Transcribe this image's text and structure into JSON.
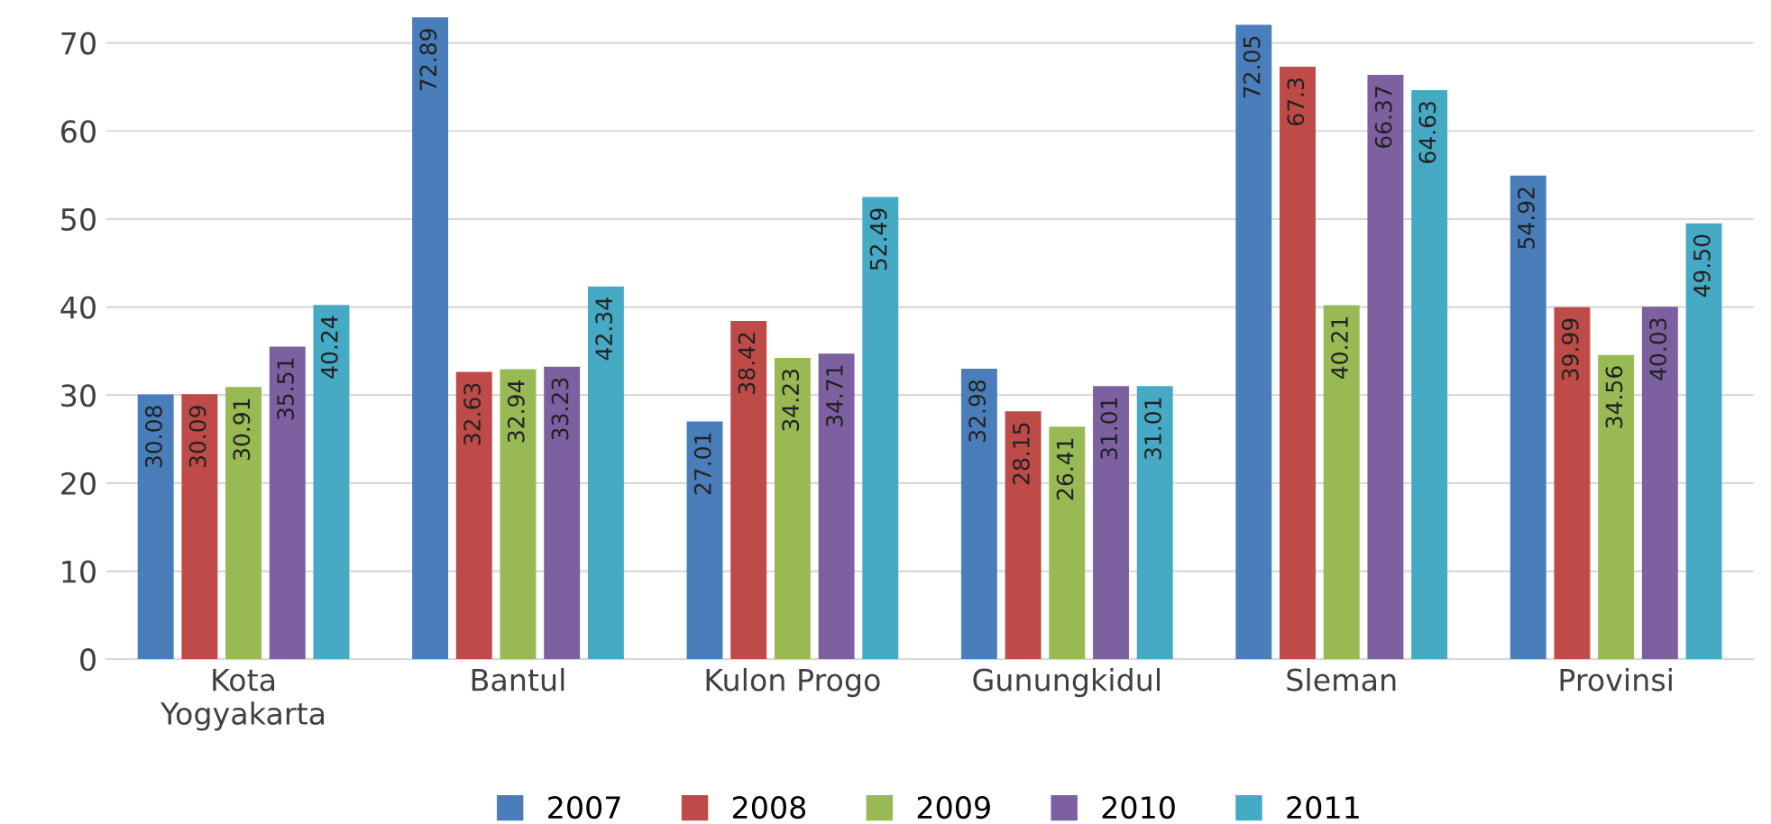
{
  "chart_data": {
    "type": "bar",
    "categories": [
      "Kota\nYogyakarta",
      "Bantul",
      "Kulon Progo",
      "Gunungkidul",
      "Sleman",
      "Provinsi"
    ],
    "series": [
      {
        "name": "2007",
        "color": "#4a7ebb",
        "values": [
          30.08,
          72.89,
          27.01,
          32.98,
          72.05,
          54.92
        ],
        "value_labels": [
          "30.08",
          "72.89",
          "27.01",
          "32.98",
          "72.05",
          "54.92"
        ]
      },
      {
        "name": "2008",
        "color": "#be4b48",
        "values": [
          30.09,
          32.63,
          38.42,
          28.15,
          67.3,
          39.99
        ],
        "value_labels": [
          "30.09",
          "32.63",
          "38.42",
          "28.15",
          "67.3",
          "39.99"
        ]
      },
      {
        "name": "2009",
        "color": "#98b954",
        "values": [
          30.91,
          32.94,
          34.23,
          26.41,
          40.21,
          34.56
        ],
        "value_labels": [
          "30.91",
          "32.94",
          "34.23",
          "26.41",
          "40.21",
          "34.56"
        ]
      },
      {
        "name": "2010",
        "color": "#7d60a0",
        "values": [
          35.51,
          33.23,
          34.71,
          31.01,
          66.37,
          40.03
        ],
        "value_labels": [
          "35.51",
          "33.23",
          "34.71",
          "31.01",
          "66.37",
          "40.03"
        ]
      },
      {
        "name": "2011",
        "color": "#46aac5",
        "values": [
          40.24,
          42.34,
          52.49,
          31.01,
          64.63,
          49.5
        ],
        "value_labels": [
          "40.24",
          "42.34",
          "52.49",
          "31.01",
          "64.63",
          "49.50"
        ]
      }
    ],
    "ylim": [
      0,
      73
    ],
    "yticks": [
      0,
      10,
      20,
      30,
      40,
      50,
      60,
      70
    ],
    "grid": "y",
    "legend": "bottom"
  }
}
